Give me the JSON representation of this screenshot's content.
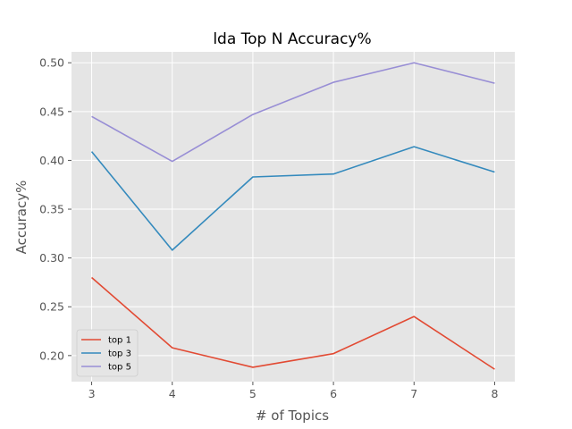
{
  "chart_data": {
    "type": "line",
    "title": "lda Top N Accuracy%",
    "xlabel": "# of Topics",
    "ylabel": "Accuracy%",
    "x": [
      3,
      4,
      5,
      6,
      7,
      8
    ],
    "xlim": [
      2.75,
      8.25
    ],
    "ylim": [
      0.1733,
      0.5112
    ],
    "yticks": [
      0.2,
      0.25,
      0.3,
      0.35,
      0.4,
      0.45,
      0.5
    ],
    "ytick_labels": [
      "0.20",
      "0.25",
      "0.30",
      "0.35",
      "0.40",
      "0.45",
      "0.50"
    ],
    "xtick_labels": [
      "3",
      "4",
      "5",
      "6",
      "7",
      "8"
    ],
    "grid": true,
    "legend_position": "lower-left",
    "colors": {
      "plot_background": "#E5E5E5",
      "grid": "#FFFFFF",
      "text": "#555555"
    },
    "series": [
      {
        "name": "top 1",
        "color": "#E24A33",
        "values": [
          0.28,
          0.208,
          0.188,
          0.202,
          0.24,
          0.186
        ]
      },
      {
        "name": "top 3",
        "color": "#348ABD",
        "values": [
          0.409,
          0.308,
          0.383,
          0.386,
          0.414,
          0.388
        ]
      },
      {
        "name": "top 5",
        "color": "#988ED5",
        "values": [
          0.445,
          0.399,
          0.447,
          0.48,
          0.5,
          0.479
        ]
      }
    ]
  }
}
